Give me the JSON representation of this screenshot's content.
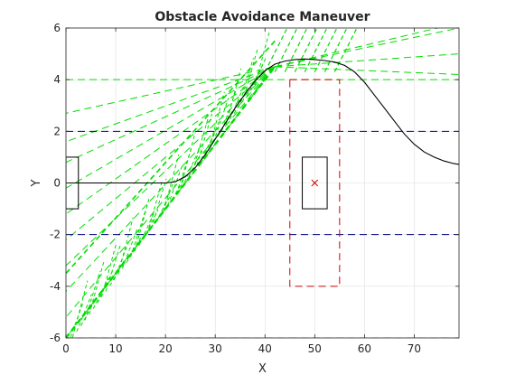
{
  "chart_data": {
    "type": "line",
    "title": "Obstacle Avoidance Maneuver",
    "xlabel": "X",
    "ylabel": "Y",
    "xlim": [
      0,
      79
    ],
    "ylim": [
      -6,
      6
    ],
    "xticks": [
      0,
      10,
      20,
      30,
      40,
      50,
      60,
      70
    ],
    "yticks": [
      -6,
      -4,
      -2,
      0,
      2,
      4,
      6
    ],
    "xtick_labels": [
      "0",
      "10",
      "20",
      "30",
      "40",
      "50",
      "60",
      "70"
    ],
    "ytick_labels": [
      "-6",
      "-4",
      "-2",
      "0",
      "2",
      "4",
      "6"
    ],
    "grid": true,
    "colors": {
      "path": "#000000",
      "rays": "#00dd00",
      "lane": "#000080",
      "obstacle_zone": "#cc0000",
      "box": "#000000",
      "marker": "#cc0000",
      "grid": "#dedede"
    },
    "lane_lines_y": [
      2,
      -2
    ],
    "horizontal_green_lines_y": [
      4,
      -6
    ],
    "path_points": [
      [
        0,
        0
      ],
      [
        5,
        0
      ],
      [
        10,
        0
      ],
      [
        15,
        0
      ],
      [
        18,
        0
      ],
      [
        20,
        0.0
      ],
      [
        22,
        0.05
      ],
      [
        24,
        0.25
      ],
      [
        26,
        0.6
      ],
      [
        28,
        1.1
      ],
      [
        30,
        1.7
      ],
      [
        32,
        2.3
      ],
      [
        34,
        2.9
      ],
      [
        36,
        3.45
      ],
      [
        38,
        3.95
      ],
      [
        40,
        4.35
      ],
      [
        42,
        4.6
      ],
      [
        44,
        4.72
      ],
      [
        46,
        4.78
      ],
      [
        48,
        4.8
      ],
      [
        50,
        4.78
      ],
      [
        52,
        4.74
      ],
      [
        54,
        4.68
      ],
      [
        56,
        4.55
      ],
      [
        58,
        4.3
      ],
      [
        60,
        3.9
      ],
      [
        62,
        3.4
      ],
      [
        64,
        2.9
      ],
      [
        66,
        2.4
      ],
      [
        68,
        1.9
      ],
      [
        70,
        1.5
      ],
      [
        72,
        1.2
      ],
      [
        74,
        1.0
      ],
      [
        76,
        0.85
      ],
      [
        78,
        0.75
      ],
      [
        79,
        0.72
      ]
    ],
    "vehicle_box": {
      "x": [
        0,
        2.5
      ],
      "y": [
        -1,
        1
      ]
    },
    "obstacle_box": {
      "x": [
        47.5,
        52.5
      ],
      "y": [
        -1,
        1
      ]
    },
    "obstacle_center": [
      50,
      0
    ],
    "safety_zone": {
      "x": [
        45,
        55
      ],
      "y": [
        -4,
        4
      ]
    },
    "ray_fan": {
      "origin": [
        42,
        4.5
      ],
      "left_ray_ends_y": [
        -6,
        -5.2,
        -4.2,
        -3.2,
        -2.2,
        -1.2,
        -0.2,
        0.8,
        1.6,
        2.7
      ],
      "right_ray_ends_y": [
        6.2,
        6.0,
        5.0,
        4.2
      ]
    },
    "ray_hatch": {
      "x_start": 0.5,
      "x_end": 38,
      "count": 46
    }
  }
}
